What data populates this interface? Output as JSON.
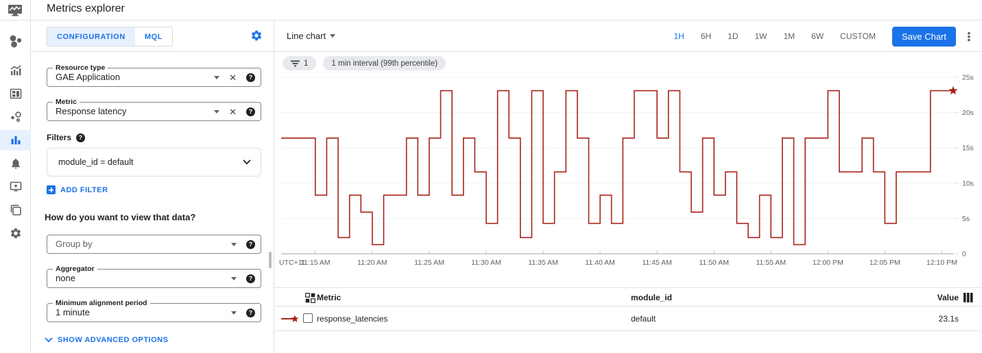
{
  "app": {
    "title": "Metrics explorer"
  },
  "colors": {
    "accent": "#1a73e8",
    "series_red": "#a8221a",
    "grid": "#f1f3f4",
    "axis": "#9aa0a6"
  },
  "sidebar": {
    "items": [
      "monitoring-overview-icon",
      "metrics-icon",
      "dashboards-icon",
      "services-icon",
      "metrics-explorer-icon",
      "alerting-icon",
      "uptime-checks-icon",
      "groups-icon",
      "settings-icon"
    ],
    "selected": "metrics-explorer-icon"
  },
  "config_panel": {
    "tabs": [
      {
        "label": "CONFIGURATION",
        "active": true
      },
      {
        "label": "MQL",
        "active": false
      }
    ],
    "resource_type": {
      "label": "Resource type",
      "value": "GAE Application"
    },
    "metric": {
      "label": "Metric",
      "value": "Response latency"
    },
    "filters_label": "Filters",
    "filter_value": "module_id = default",
    "add_filter_label": "ADD FILTER",
    "view_question": "How do you want to view that data?",
    "group_by": {
      "placeholder": "Group by"
    },
    "aggregator": {
      "label": "Aggregator",
      "value": "none"
    },
    "min_alignment": {
      "label": "Minimum alignment period",
      "value": "1 minute"
    },
    "advanced_label": "SHOW ADVANCED OPTIONS"
  },
  "chart_toolbar": {
    "chart_type": "Line chart",
    "time_ranges": [
      "1H",
      "6H",
      "1D",
      "1W",
      "1M",
      "6W",
      "CUSTOM"
    ],
    "active_range": "1H",
    "save_label": "Save Chart"
  },
  "chips": {
    "filter_count": "1",
    "interval": "1 min interval (99th percentile)"
  },
  "chart_data": {
    "type": "line",
    "subtype": "step",
    "x_axis_prefix": "UTC+11",
    "ylim": [
      0,
      25
    ],
    "y_ticks": [
      {
        "v": 0,
        "label": "0"
      },
      {
        "v": 5,
        "label": "5s"
      },
      {
        "v": 10,
        "label": "10s"
      },
      {
        "v": 15,
        "label": "15s"
      },
      {
        "v": 20,
        "label": "20s"
      },
      {
        "v": 25,
        "label": "25s"
      }
    ],
    "x_ticks": [
      {
        "label": "11:15 AM",
        "t": "11:15"
      },
      {
        "label": "11:20 AM",
        "t": "11:20"
      },
      {
        "label": "11:25 AM",
        "t": "11:25"
      },
      {
        "label": "11:30 AM",
        "t": "11:30"
      },
      {
        "label": "11:35 AM",
        "t": "11:35"
      },
      {
        "label": "11:40 AM",
        "t": "11:40"
      },
      {
        "label": "11:45 AM",
        "t": "11:45"
      },
      {
        "label": "11:50 AM",
        "t": "11:50"
      },
      {
        "label": "11:55 AM",
        "t": "11:55"
      },
      {
        "label": "12:00 PM",
        "t": "12:00"
      },
      {
        "label": "12:05 PM",
        "t": "12:05"
      },
      {
        "label": "12:10 PM",
        "t": "12:10"
      }
    ],
    "series": [
      {
        "name": "response_latencies",
        "color": "#a8221a",
        "end_marker": "star",
        "x": [
          "11:12",
          "11:13",
          "11:14",
          "11:15",
          "11:16",
          "11:17",
          "11:18",
          "11:19",
          "11:20",
          "11:21",
          "11:22",
          "11:23",
          "11:24",
          "11:25",
          "11:26",
          "11:27",
          "11:28",
          "11:29",
          "11:30",
          "11:31",
          "11:32",
          "11:33",
          "11:34",
          "11:35",
          "11:36",
          "11:37",
          "11:38",
          "11:39",
          "11:40",
          "11:41",
          "11:42",
          "11:43",
          "11:44",
          "11:45",
          "11:46",
          "11:47",
          "11:48",
          "11:49",
          "11:50",
          "11:51",
          "11:52",
          "11:53",
          "11:54",
          "11:55",
          "11:56",
          "11:57",
          "11:58",
          "11:59",
          "12:00",
          "12:01",
          "12:02",
          "12:03",
          "12:04",
          "12:05",
          "12:06",
          "12:07",
          "12:08",
          "12:09",
          "12:10",
          "12:11"
        ],
        "values": [
          16.4,
          16.4,
          16.4,
          8.3,
          16.4,
          2.3,
          8.3,
          5.9,
          1.3,
          8.3,
          8.3,
          16.4,
          8.3,
          16.4,
          23.1,
          8.3,
          16.4,
          11.6,
          4.3,
          23.1,
          16.4,
          2.3,
          23.1,
          4.3,
          11.6,
          23.1,
          16.4,
          4.3,
          8.3,
          4.3,
          16.4,
          23.1,
          23.1,
          16.4,
          23.1,
          11.6,
          5.9,
          16.4,
          8.3,
          11.6,
          4.3,
          2.3,
          8.3,
          2.3,
          16.4,
          1.3,
          16.4,
          16.4,
          23.1,
          11.6,
          11.6,
          16.4,
          11.6,
          4.3,
          11.6,
          11.6,
          11.6,
          23.1,
          23.1,
          23.1
        ]
      }
    ]
  },
  "table": {
    "columns": [
      "Metric",
      "module_id",
      "Value"
    ],
    "rows": [
      {
        "metric": "response_latencies",
        "module_id": "default",
        "value": "23.1s"
      }
    ]
  }
}
